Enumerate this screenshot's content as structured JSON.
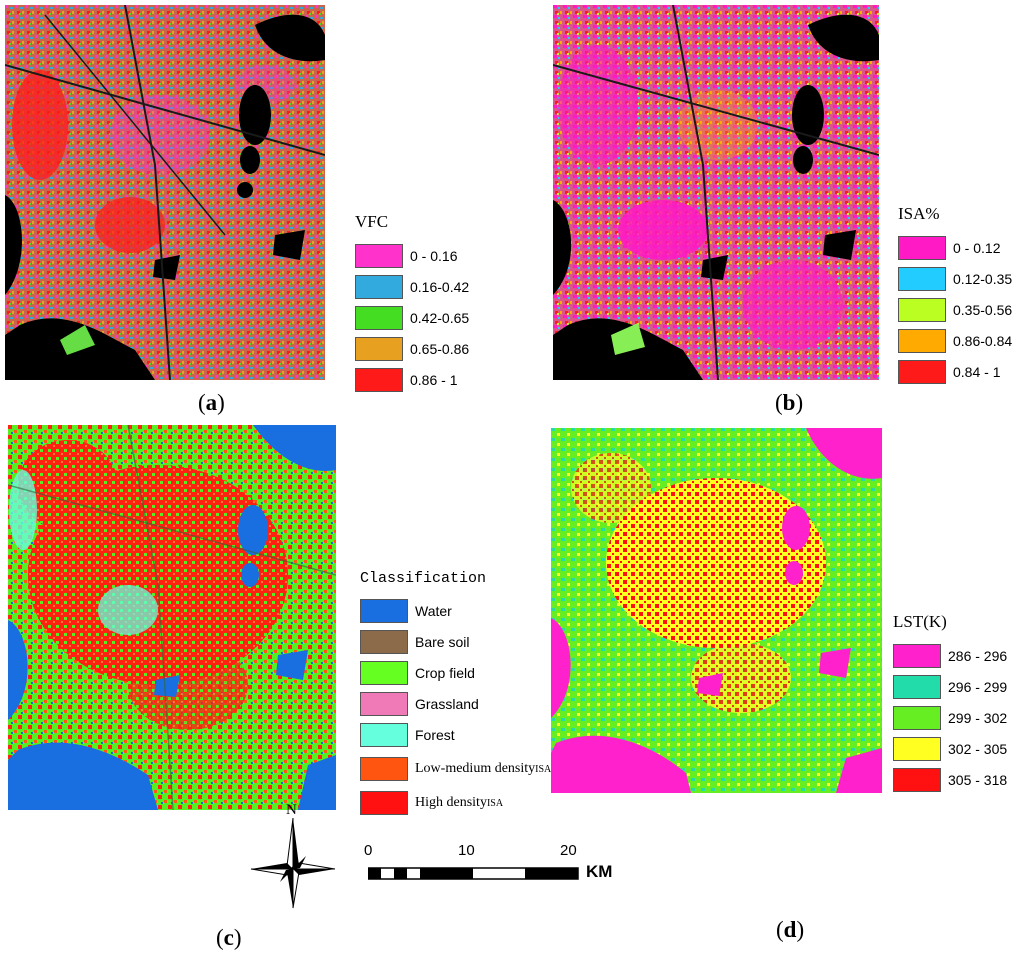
{
  "panels": {
    "a": {
      "caption_letter": "a",
      "legend_title": "VFC",
      "legend": [
        {
          "label": "0 - 0.16",
          "color": "#ff33cc"
        },
        {
          "label": "0.16-0.42",
          "color": "#33aadd"
        },
        {
          "label": "0.42-0.65",
          "color": "#44dd22"
        },
        {
          "label": "0.65-0.86",
          "color": "#e8a020"
        },
        {
          "label": "0.86 - 1",
          "color": "#ff1a1a"
        }
      ]
    },
    "b": {
      "caption_letter": "b",
      "legend_title": "ISA%",
      "legend": [
        {
          "label": "0 - 0.12",
          "color": "#ff1ac6"
        },
        {
          "label": "0.12-0.35",
          "color": "#22ccff"
        },
        {
          "label": "0.35-0.56",
          "color": "#bbff22"
        },
        {
          "label": "0.86-0.84",
          "color": "#ffaa00"
        },
        {
          "label": "0.84 - 1",
          "color": "#ff1a1a"
        }
      ]
    },
    "c": {
      "caption_letter": "c",
      "legend_title": "Classification",
      "legend": [
        {
          "label": "Water",
          "color": "#1a6fe0"
        },
        {
          "label": "Bare soil",
          "color": "#8b6b4a"
        },
        {
          "label": "Crop field",
          "color": "#66ff22"
        },
        {
          "label": "Grassland",
          "color": "#f07ab8"
        },
        {
          "label": "Forest",
          "color": "#66ffdd"
        },
        {
          "label": "Low-medium density",
          "sub": "ISA",
          "color": "#ff5511"
        },
        {
          "label": "High density",
          "sub": "ISA",
          "color": "#ff1111"
        }
      ]
    },
    "d": {
      "caption_letter": "d",
      "legend_title": "LST(K)",
      "legend": [
        {
          "label": "286 - 296",
          "color": "#ff22cc"
        },
        {
          "label": "296 - 299",
          "color": "#22ddaa"
        },
        {
          "label": "299 - 302",
          "color": "#66ee22"
        },
        {
          "label": "302 - 305",
          "color": "#ffff22"
        },
        {
          "label": "305 - 318",
          "color": "#ff1111"
        }
      ]
    }
  },
  "north_arrow": {
    "label": "N"
  },
  "scale_bar": {
    "ticks": [
      "0",
      "10",
      "20"
    ],
    "unit": "KM"
  },
  "caption_open": "(",
  "caption_close": ")"
}
